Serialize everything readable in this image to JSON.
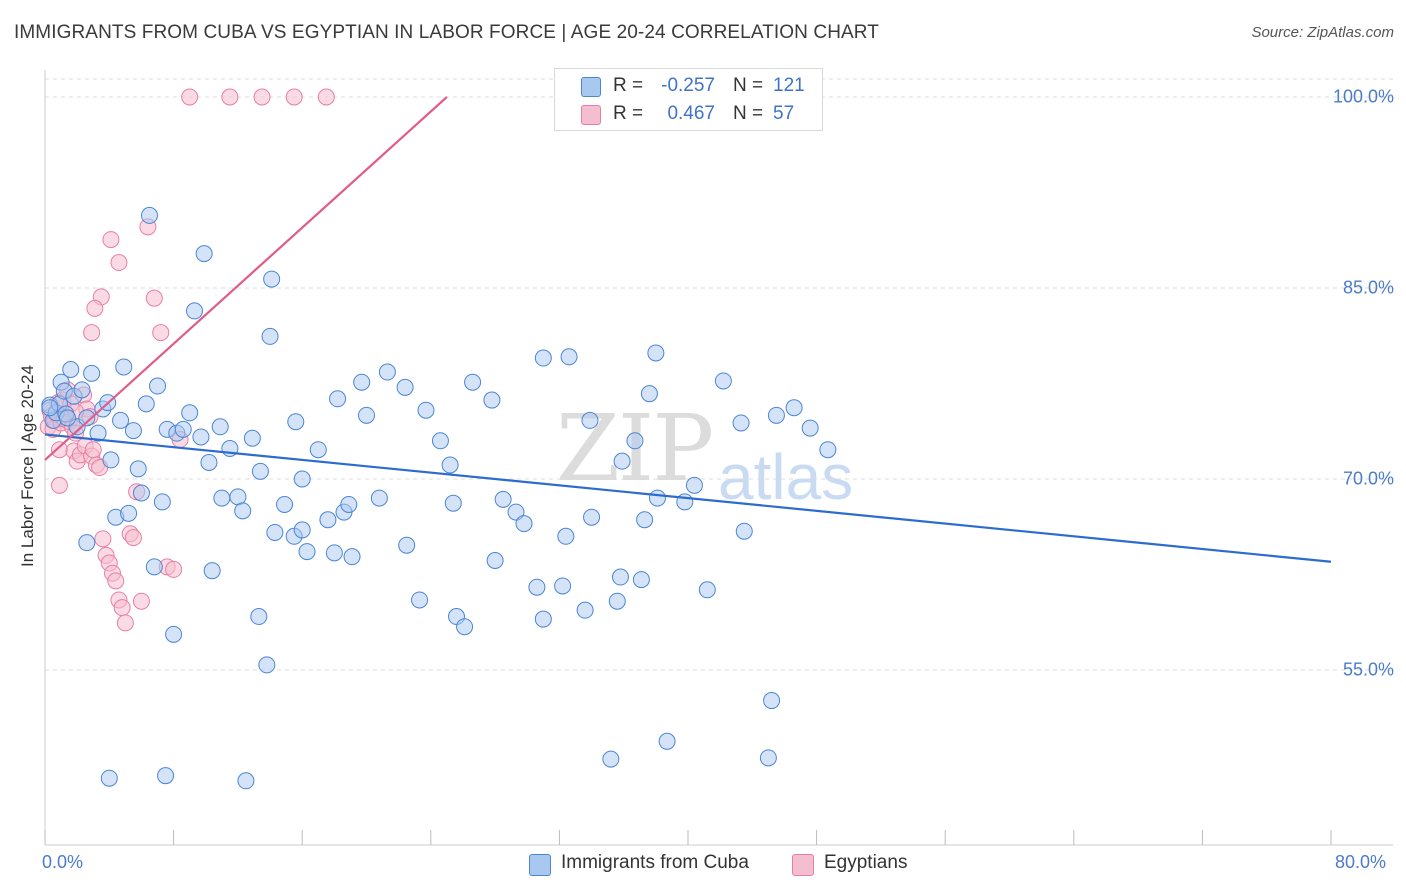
{
  "title": "IMMIGRANTS FROM CUBA VS EGYPTIAN IN LABOR FORCE | AGE 20-24 CORRELATION CHART",
  "source": "Source: ZipAtlas.com",
  "watermark": {
    "zip": "ZIP",
    "atlas": "atlas"
  },
  "stats": {
    "cuba": {
      "r_label": "R =",
      "r": "-0.257",
      "n_label": "N =",
      "n": "121"
    },
    "egypt": {
      "r_label": "R =",
      "r": "0.467",
      "n_label": "N =",
      "n": "57"
    }
  },
  "colors": {
    "blue_fill": "#a9c8f0",
    "blue_stroke": "#4a86d4",
    "blue_line": "#2c6ccf",
    "pink_fill": "#f5bdd0",
    "pink_stroke": "#e87fa3",
    "pink_line": "#e05c8a"
  },
  "chart_data": {
    "type": "scatter",
    "title": "IMMIGRANTS FROM CUBA VS EGYPTIAN IN LABOR FORCE | AGE 20-24 CORRELATION CHART",
    "xlabel": "",
    "ylabel": "In Labor Force | Age 20-24",
    "xlim": [
      0,
      80
    ],
    "ylim": [
      40,
      101.5
    ],
    "x_tick_labels": [
      "0.0%",
      "80.0%"
    ],
    "y_ticks": [
      55,
      70,
      85,
      100
    ],
    "y_tick_labels": [
      "55.0%",
      "70.0%",
      "85.0%",
      "100.0%"
    ],
    "legend": [
      "Immigrants from Cuba",
      "Egyptians"
    ],
    "series": [
      {
        "name": "Immigrants from Cuba",
        "trend": {
          "x": [
            0,
            80
          ],
          "y": [
            73.5,
            63.5
          ]
        },
        "points": [
          [
            0.3,
            75.8
          ],
          [
            0.5,
            74.6
          ],
          [
            0.7,
            75.2
          ],
          [
            0.9,
            75.9
          ],
          [
            1.0,
            77.6
          ],
          [
            1.2,
            76.9
          ],
          [
            1.3,
            75.1
          ],
          [
            1.6,
            78.6
          ],
          [
            1.8,
            76.5
          ],
          [
            2.0,
            74.1
          ],
          [
            2.3,
            77.0
          ],
          [
            2.6,
            74.8
          ],
          [
            2.9,
            78.3
          ],
          [
            3.3,
            73.6
          ],
          [
            3.6,
            75.5
          ],
          [
            3.9,
            76.0
          ],
          [
            4.1,
            71.5
          ],
          [
            4.4,
            67.0
          ],
          [
            4.7,
            74.6
          ],
          [
            4.9,
            78.8
          ],
          [
            5.2,
            67.3
          ],
          [
            5.5,
            73.8
          ],
          [
            5.8,
            70.8
          ],
          [
            6.0,
            68.9
          ],
          [
            6.3,
            75.9
          ],
          [
            6.8,
            63.1
          ],
          [
            7.0,
            77.3
          ],
          [
            7.3,
            68.2
          ],
          [
            7.6,
            73.9
          ],
          [
            8.0,
            57.8
          ],
          [
            8.2,
            73.6
          ],
          [
            8.6,
            73.9
          ],
          [
            9.0,
            75.2
          ],
          [
            9.3,
            83.2
          ],
          [
            9.7,
            73.3
          ],
          [
            10.2,
            71.3
          ],
          [
            10.4,
            62.8
          ],
          [
            10.9,
            74.1
          ],
          [
            11.0,
            68.5
          ],
          [
            11.5,
            72.4
          ],
          [
            12.0,
            68.6
          ],
          [
            12.3,
            67.5
          ],
          [
            12.9,
            73.2
          ],
          [
            13.3,
            59.2
          ],
          [
            13.4,
            70.6
          ],
          [
            13.8,
            55.4
          ],
          [
            14.0,
            81.2
          ],
          [
            14.3,
            65.8
          ],
          [
            14.9,
            68.0
          ],
          [
            15.5,
            65.5
          ],
          [
            15.6,
            74.5
          ],
          [
            16.0,
            66.0
          ],
          [
            16.3,
            64.3
          ],
          [
            17.0,
            72.3
          ],
          [
            17.6,
            66.8
          ],
          [
            18.0,
            64.2
          ],
          [
            18.2,
            76.3
          ],
          [
            18.6,
            67.4
          ],
          [
            18.9,
            68.0
          ],
          [
            19.1,
            63.9
          ],
          [
            19.7,
            77.6
          ],
          [
            20.0,
            75.0
          ],
          [
            20.8,
            68.5
          ],
          [
            21.3,
            78.4
          ],
          [
            22.4,
            77.2
          ],
          [
            22.5,
            64.8
          ],
          [
            23.3,
            60.5
          ],
          [
            23.7,
            75.4
          ],
          [
            24.6,
            73.0
          ],
          [
            25.2,
            71.1
          ],
          [
            25.4,
            68.1
          ],
          [
            25.6,
            59.2
          ],
          [
            26.1,
            58.4
          ],
          [
            26.6,
            77.6
          ],
          [
            27.8,
            76.2
          ],
          [
            28.0,
            63.6
          ],
          [
            28.5,
            68.4
          ],
          [
            29.3,
            67.4
          ],
          [
            29.8,
            66.5
          ],
          [
            30.6,
            61.5
          ],
          [
            31.0,
            79.5
          ],
          [
            31.0,
            59.0
          ],
          [
            32.2,
            61.6
          ],
          [
            32.4,
            65.5
          ],
          [
            32.6,
            79.6
          ],
          [
            33.6,
            59.7
          ],
          [
            33.9,
            74.6
          ],
          [
            34.0,
            67.0
          ],
          [
            35.6,
            60.4
          ],
          [
            35.8,
            62.3
          ],
          [
            35.9,
            71.4
          ],
          [
            36.7,
            73.0
          ],
          [
            37.1,
            62.1
          ],
          [
            37.3,
            66.8
          ],
          [
            37.6,
            76.7
          ],
          [
            38.0,
            79.9
          ],
          [
            38.1,
            68.5
          ],
          [
            38.7,
            49.4
          ],
          [
            39.8,
            68.2
          ],
          [
            40.4,
            69.5
          ],
          [
            41.2,
            61.3
          ],
          [
            42.2,
            77.7
          ],
          [
            43.3,
            74.4
          ],
          [
            43.5,
            65.9
          ],
          [
            45.2,
            52.6
          ],
          [
            45.0,
            48.1
          ],
          [
            45.5,
            75.0
          ],
          [
            46.6,
            75.6
          ],
          [
            47.6,
            74.0
          ],
          [
            48.7,
            72.3
          ],
          [
            9.9,
            87.7
          ],
          [
            14.1,
            85.7
          ],
          [
            16.0,
            70.0
          ],
          [
            4.0,
            46.5
          ],
          [
            2.6,
            65.0
          ],
          [
            1.4,
            74.8
          ],
          [
            0.3,
            75.6
          ],
          [
            35.2,
            48.0
          ],
          [
            7.5,
            46.7
          ],
          [
            12.5,
            46.3
          ],
          [
            6.5,
            90.7
          ]
        ]
      },
      {
        "name": "Egyptians",
        "trend": {
          "x": [
            0,
            25
          ],
          "y": [
            71.5,
            100
          ]
        },
        "points": [
          [
            0.2,
            74.1
          ],
          [
            0.3,
            75.4
          ],
          [
            0.4,
            74.9
          ],
          [
            0.5,
            73.9
          ],
          [
            0.6,
            74.6
          ],
          [
            0.7,
            75.1
          ],
          [
            0.8,
            76.0
          ],
          [
            0.9,
            72.3
          ],
          [
            1.0,
            74.4
          ],
          [
            1.1,
            76.2
          ],
          [
            1.2,
            74.7
          ],
          [
            1.4,
            77.0
          ],
          [
            1.5,
            74.5
          ],
          [
            1.6,
            75.9
          ],
          [
            1.7,
            74.1
          ],
          [
            1.8,
            72.2
          ],
          [
            1.9,
            73.6
          ],
          [
            2.0,
            71.4
          ],
          [
            2.2,
            71.9
          ],
          [
            2.4,
            76.6
          ],
          [
            2.5,
            72.6
          ],
          [
            2.6,
            75.5
          ],
          [
            2.8,
            74.9
          ],
          [
            2.9,
            71.8
          ],
          [
            3.0,
            72.3
          ],
          [
            3.2,
            71.1
          ],
          [
            3.4,
            70.9
          ],
          [
            3.6,
            65.3
          ],
          [
            3.8,
            64.0
          ],
          [
            4.0,
            63.4
          ],
          [
            4.2,
            62.6
          ],
          [
            4.4,
            62.0
          ],
          [
            4.6,
            60.5
          ],
          [
            4.8,
            59.9
          ],
          [
            5.0,
            58.7
          ],
          [
            5.3,
            65.7
          ],
          [
            5.5,
            65.4
          ],
          [
            5.7,
            69.0
          ],
          [
            6.0,
            60.4
          ],
          [
            6.4,
            89.8
          ],
          [
            6.8,
            84.2
          ],
          [
            7.2,
            81.5
          ],
          [
            7.6,
            63.1
          ],
          [
            8.0,
            62.9
          ],
          [
            8.4,
            73.1
          ],
          [
            9.0,
            100.0
          ],
          [
            11.5,
            100.0
          ],
          [
            13.5,
            100.0
          ],
          [
            15.5,
            100.0
          ],
          [
            17.5,
            100.0
          ],
          [
            4.1,
            88.8
          ],
          [
            4.6,
            87.0
          ],
          [
            3.5,
            84.3
          ],
          [
            3.1,
            83.4
          ],
          [
            2.9,
            81.5
          ],
          [
            1.9,
            75.3
          ],
          [
            0.9,
            69.5
          ]
        ]
      }
    ]
  },
  "legend": {
    "cuba": "Immigrants from Cuba",
    "egypt": "Egyptians"
  },
  "y_ticks": {
    "t100": "100.0%",
    "t85": "85.0%",
    "t70": "70.0%",
    "t55": "55.0%"
  },
  "x_ticks": {
    "left": "0.0%",
    "right": "80.0%"
  }
}
